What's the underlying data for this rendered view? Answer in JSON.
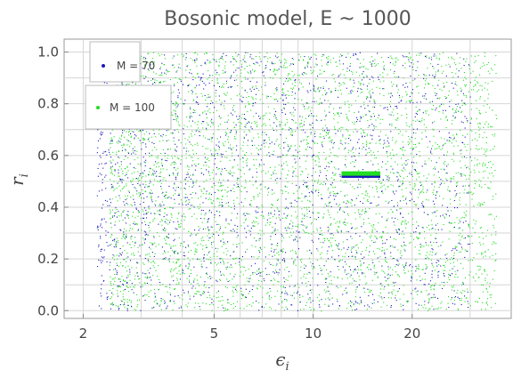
{
  "chart_data": {
    "type": "scatter",
    "title": "Bosonic model, E ~ 1000",
    "xlabel": "ϵ",
    "xlabel_sub": "i",
    "ylabel": "r",
    "ylabel_sub": "i",
    "xscale": "log",
    "xlim": [
      1.75,
      40
    ],
    "ylim": [
      -0.03,
      1.05
    ],
    "xticks": [
      2,
      5,
      10,
      20
    ],
    "xtick_labels": [
      "2",
      "5",
      "10",
      "20"
    ],
    "yticks": [
      0.0,
      0.2,
      0.4,
      0.6,
      0.8,
      1.0
    ],
    "ytick_labels": [
      "0.0",
      "0.2",
      "0.4",
      "0.6",
      "0.8",
      "1.0"
    ],
    "grid": true,
    "legend_placement": "top-left",
    "series": [
      {
        "name": "M = 70",
        "color": "#1a1ab8",
        "point_count_approx": 6000,
        "x_range": [
          2.2,
          30
        ],
        "y_range": [
          0.0,
          1.0
        ],
        "cluster": {
          "x": [
            12.2,
            16.0
          ],
          "y": 0.517
        }
      },
      {
        "name": "M = 100",
        "color": "#22dd22",
        "point_count_approx": 12000,
        "x_range": [
          2.4,
          36
        ],
        "y_range": [
          0.0,
          1.0
        ],
        "cluster": {
          "x": [
            12.2,
            16.0
          ],
          "y": 0.532
        }
      }
    ]
  }
}
